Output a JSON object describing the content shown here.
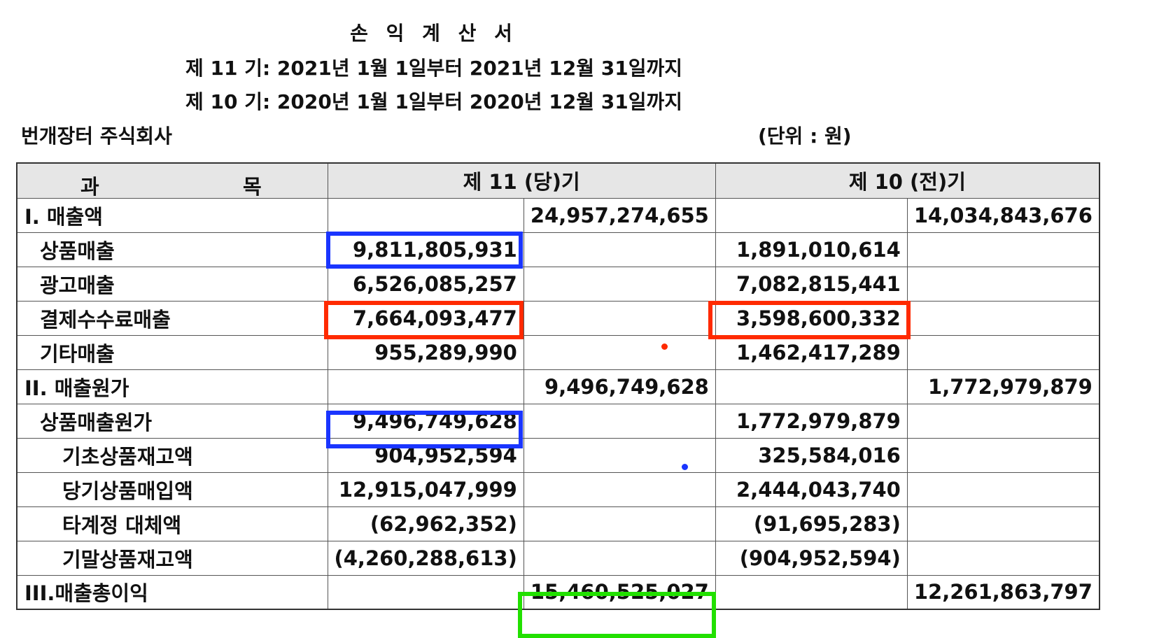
{
  "header": {
    "title": "손 익 계 산 서",
    "period_current": "제 11 기: 2021년 1월 1일부터 2021년 12월 31일까지",
    "period_prior": "제 10 기: 2020년 1월 1일부터 2020년 12월 31일까지",
    "company": "번개장터 주식회사",
    "unit": "(단위 : 원)"
  },
  "table": {
    "col_account_1": "과",
    "col_account_2": "목",
    "col_current": "제 11 (당)기",
    "col_prior": "제 10 (전)기",
    "rows": [
      {
        "label": "I. 매출액",
        "cur_detail": "",
        "cur_total": "24,957,274,655",
        "prior_detail": "",
        "prior_total": "14,034,843,676"
      },
      {
        "label": "상품매출",
        "cur_detail": "9,811,805,931",
        "cur_total": "",
        "prior_detail": "1,891,010,614",
        "prior_total": ""
      },
      {
        "label": "광고매출",
        "cur_detail": "6,526,085,257",
        "cur_total": "",
        "prior_detail": "7,082,815,441",
        "prior_total": ""
      },
      {
        "label": "결제수수료매출",
        "cur_detail": "7,664,093,477",
        "cur_total": "",
        "prior_detail": "3,598,600,332",
        "prior_total": ""
      },
      {
        "label": "기타매출",
        "cur_detail": "955,289,990",
        "cur_total": "",
        "prior_detail": "1,462,417,289",
        "prior_total": ""
      },
      {
        "label": "II. 매출원가",
        "cur_detail": "",
        "cur_total": "9,496,749,628",
        "prior_detail": "",
        "prior_total": "1,772,979,879"
      },
      {
        "label": "상품매출원가",
        "cur_detail": "9,496,749,628",
        "cur_total": "",
        "prior_detail": "1,772,979,879",
        "prior_total": ""
      },
      {
        "label": "기초상품재고액",
        "cur_detail": "904,952,594",
        "cur_total": "",
        "prior_detail": "325,584,016",
        "prior_total": ""
      },
      {
        "label": "당기상품매입액",
        "cur_detail": "12,915,047,999",
        "cur_total": "",
        "prior_detail": "2,444,043,740",
        "prior_total": ""
      },
      {
        "label": "타계정 대체액",
        "cur_detail": "(62,962,352)",
        "cur_total": "",
        "prior_detail": "(91,695,283)",
        "prior_total": ""
      },
      {
        "label": "기말상품재고액",
        "cur_detail": "(4,260,288,613)",
        "cur_total": "",
        "prior_detail": "(904,952,594)",
        "prior_total": ""
      },
      {
        "label": "III.매출총이익",
        "cur_detail": "",
        "cur_total": "15,460,525,027",
        "prior_detail": "",
        "prior_total": "12,261,863,797"
      }
    ]
  },
  "annotations": {
    "blue": "#1a35ff",
    "red": "#ff2a00",
    "green": "#22e000"
  }
}
